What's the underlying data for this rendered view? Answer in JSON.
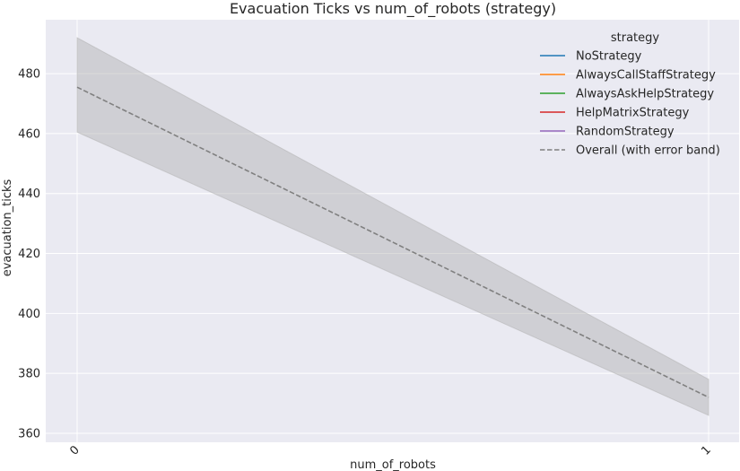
{
  "chart_data": {
    "type": "line",
    "title": "Evacuation Ticks vs num_of_robots (strategy)",
    "xlabel": "num_of_robots",
    "ylabel": "evacuation_ticks",
    "categories": [
      "0",
      "1"
    ],
    "ylim": [
      357,
      498
    ],
    "yticks": [
      360,
      380,
      400,
      420,
      440,
      460,
      480
    ],
    "grid": true,
    "legend": {
      "title": "strategy",
      "placement": "top-right",
      "entries": [
        {
          "label": "NoStrategy",
          "color": "#1f77b4",
          "style": "solid"
        },
        {
          "label": "AlwaysCallStaffStrategy",
          "color": "#ff7f0e",
          "style": "solid"
        },
        {
          "label": "AlwaysAskHelpStrategy",
          "color": "#2ca02c",
          "style": "solid"
        },
        {
          "label": "HelpMatrixStrategy",
          "color": "#d62728",
          "style": "solid"
        },
        {
          "label": "RandomStrategy",
          "color": "#9467bd",
          "style": "solid"
        },
        {
          "label": "Overall (with error band)",
          "color": "#808080",
          "style": "dashed"
        }
      ]
    },
    "series": [
      {
        "name": "Overall (with error band)",
        "values": [
          475.5,
          372
        ],
        "lower": [
          460.5,
          366
        ],
        "upper": [
          492,
          378
        ],
        "color": "#808080",
        "band_color": "#b0b0b0"
      }
    ],
    "colors": {
      "plot_background": "#eaeaf2",
      "grid": "#ffffff"
    }
  }
}
